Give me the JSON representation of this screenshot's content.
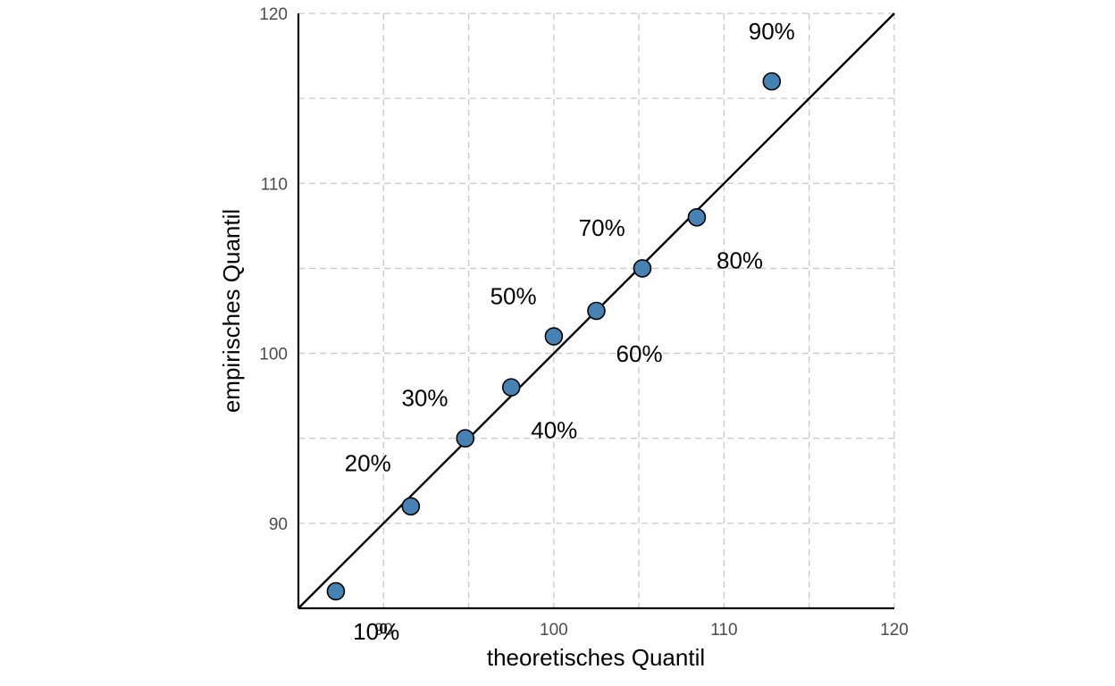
{
  "chart_data": {
    "type": "scatter",
    "xlabel": "theoretisches Quantil",
    "ylabel": "empirisches Quantil",
    "xlim": [
      85,
      120
    ],
    "ylim": [
      85,
      120
    ],
    "x_ticks": [
      90,
      100,
      110,
      120
    ],
    "y_ticks": [
      90,
      100,
      110,
      120
    ],
    "grid": true,
    "reference_line": {
      "slope": 1,
      "intercept": 0
    },
    "colors": {
      "point_fill": "#4682b4",
      "point_stroke": "#000000",
      "line": "#000000",
      "grid": "#c8c8c8"
    },
    "points": [
      {
        "label": "10%",
        "x": 87.2,
        "y": 86.0
      },
      {
        "label": "20%",
        "x": 91.6,
        "y": 91.0
      },
      {
        "label": "30%",
        "x": 94.8,
        "y": 95.0
      },
      {
        "label": "40%",
        "x": 97.5,
        "y": 98.0
      },
      {
        "label": "50%",
        "x": 100.0,
        "y": 101.0
      },
      {
        "label": "60%",
        "x": 102.5,
        "y": 102.5
      },
      {
        "label": "70%",
        "x": 105.2,
        "y": 105.0
      },
      {
        "label": "80%",
        "x": 108.4,
        "y": 108.0
      },
      {
        "label": "90%",
        "x": 112.8,
        "y": 116.0
      }
    ]
  }
}
